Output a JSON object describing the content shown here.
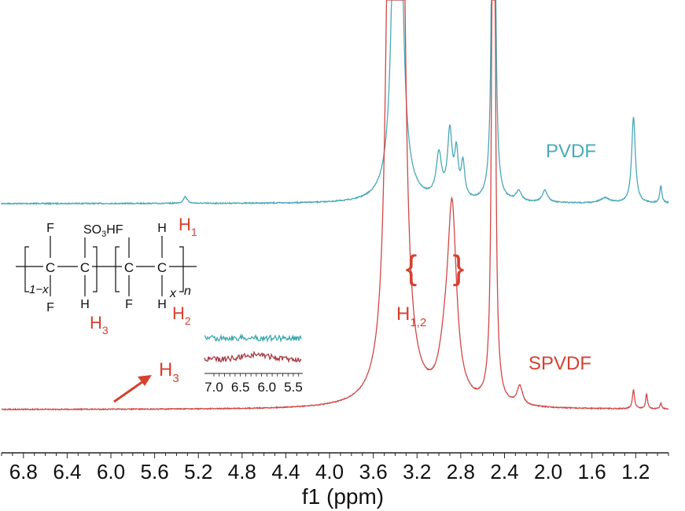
{
  "chart_data": {
    "type": "line",
    "xlabel": "f1 (ppm)",
    "x_reversed": true,
    "xlim": [
      7.0,
      0.9
    ],
    "ticks": [
      "6.8",
      "6.4",
      "6.0",
      "5.6",
      "5.2",
      "4.8",
      "4.4",
      "4.0",
      "3.6",
      "3.2",
      "2.8",
      "2.4",
      "2.0",
      "1.6",
      "1.2"
    ],
    "series": [
      {
        "name": "PVDF",
        "color": "#4aa8b8",
        "baseline": 0,
        "peaks": [
          {
            "ppm": 5.32,
            "height": 0.04,
            "width": 0.02
          },
          {
            "ppm": 3.38,
            "height": 5.0,
            "width": 0.03
          },
          {
            "ppm": 3.0,
            "height": 0.25,
            "width": 0.03
          },
          {
            "ppm": 2.9,
            "height": 0.38,
            "width": 0.025
          },
          {
            "ppm": 2.84,
            "height": 0.25,
            "width": 0.02
          },
          {
            "ppm": 2.78,
            "height": 0.2,
            "width": 0.02
          },
          {
            "ppm": 2.5,
            "height": 5.0,
            "width": 0.012
          },
          {
            "ppm": 2.27,
            "height": 0.06,
            "width": 0.03
          },
          {
            "ppm": 2.03,
            "height": 0.07,
            "width": 0.03
          },
          {
            "ppm": 1.48,
            "height": 0.03,
            "width": 0.05
          },
          {
            "ppm": 1.22,
            "height": 0.5,
            "width": 0.02
          },
          {
            "ppm": 0.97,
            "height": 0.1,
            "width": 0.012
          }
        ]
      },
      {
        "name": "SPVDF",
        "color": "#d04848",
        "baseline": 0,
        "peaks": [
          {
            "ppm": 3.45,
            "height": 2.6,
            "width": 0.04
          },
          {
            "ppm": 3.36,
            "height": 6.0,
            "width": 0.035
          },
          {
            "ppm": 2.95,
            "height": 0.16,
            "width": 0.06
          },
          {
            "ppm": 2.88,
            "height": 1.0,
            "width": 0.05
          },
          {
            "ppm": 2.5,
            "height": 6.0,
            "width": 0.012
          },
          {
            "ppm": 2.26,
            "height": 0.1,
            "width": 0.03
          },
          {
            "ppm": 1.22,
            "height": 0.1,
            "width": 0.012
          },
          {
            "ppm": 1.1,
            "height": 0.08,
            "width": 0.01
          },
          {
            "ppm": 0.97,
            "height": 0.03,
            "width": 0.01
          }
        ]
      }
    ]
  },
  "labels": {
    "pvdf": "PVDF",
    "spvdf": "SPVDF",
    "h12_main": "H",
    "h12_sub": "1,2",
    "h3_main": "H",
    "h3_sub": "3",
    "brace_left": "{",
    "brace_right": "}"
  },
  "inset": {
    "ticks": [
      "7.0",
      "6.5",
      "6.0",
      "5.5"
    ]
  },
  "structure": {
    "top_f1": "F",
    "top_so3hf_a": "SO",
    "top_so3hf_sub": "3",
    "top_so3hf_b": "HF",
    "top_h": "H",
    "carbon": "C",
    "bot_f1": "F",
    "bot_h1": "H",
    "bot_f2": "F",
    "bot_h2": "H",
    "rep_1x": "1−x",
    "rep_x": "x",
    "rep_n": "n",
    "h1_main": "H",
    "h1_sub": "1",
    "h2_main": "H",
    "h2_sub": "2",
    "h3_main": "H",
    "h3_sub": "3"
  },
  "colors": {
    "pvdf": "#4aa8b8",
    "spvdf": "#d04848",
    "annotation": "#d6402f",
    "inset_top": "#3aa8b0",
    "inset_bottom": "#a83a45"
  }
}
